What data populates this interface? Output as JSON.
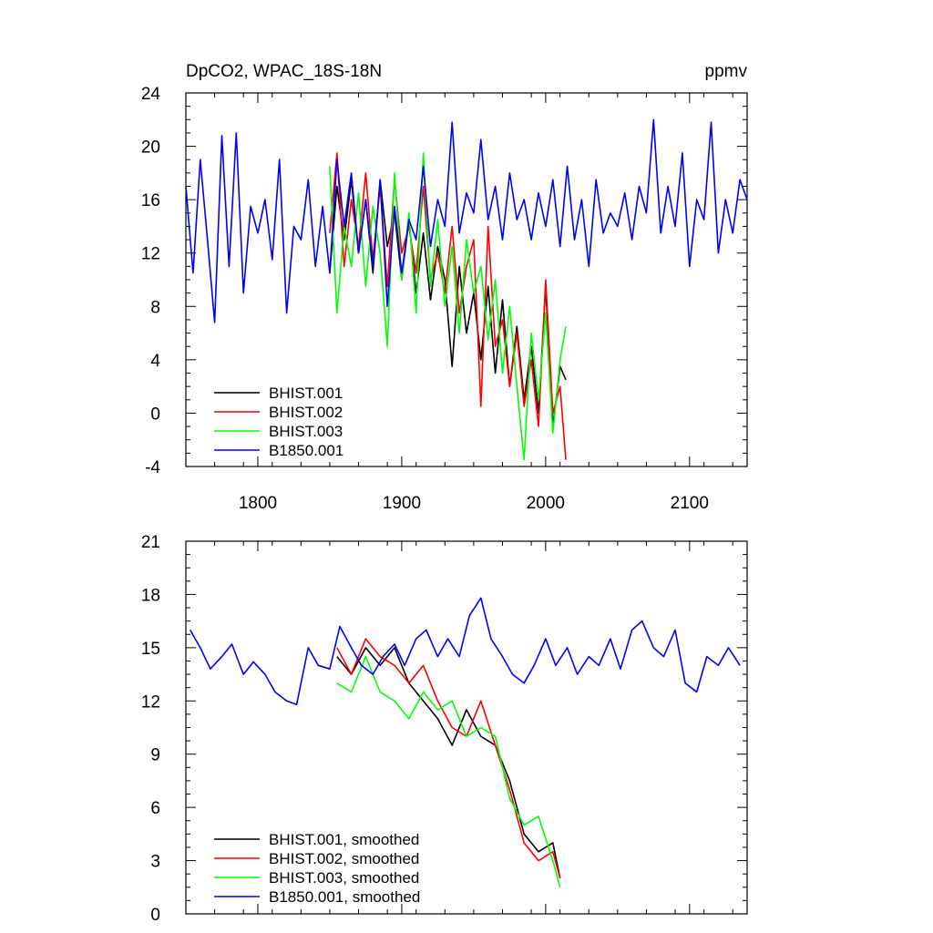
{
  "header": {
    "left_title": "DpCO2, WPAC_18S-18N",
    "right_title": "ppmv"
  },
  "colors": {
    "BHIST.001": "#000000",
    "BHIST.002": "#ff0000",
    "BHIST.003": "#00ff00",
    "B1850.001": "#0000ff"
  },
  "chart_data": [
    {
      "type": "line",
      "title": "DpCO2, WPAC_18S-18N",
      "units": "ppmv",
      "xlim": [
        1750,
        2140
      ],
      "ylim": [
        -4,
        24
      ],
      "x_ticks": [
        1800,
        1900,
        2000,
        2100
      ],
      "x_tick_labels": [
        "1800",
        "1900",
        "2000",
        "2100"
      ],
      "y_ticks": [
        -4,
        0,
        4,
        8,
        12,
        16,
        20,
        24
      ],
      "y_tick_labels": [
        "-4",
        "0",
        "4",
        "8",
        "12",
        "16",
        "20",
        "24"
      ],
      "legend_position": "bottom-left",
      "series": [
        {
          "name": "BHIST.001",
          "x": [
            1850,
            1855,
            1860,
            1865,
            1870,
            1875,
            1880,
            1885,
            1890,
            1895,
            1900,
            1905,
            1910,
            1915,
            1920,
            1925,
            1930,
            1935,
            1940,
            1945,
            1950,
            1955,
            1960,
            1965,
            1970,
            1975,
            1980,
            1985,
            1990,
            1995,
            2000,
            2005,
            2010,
            2014
          ],
          "values": [
            10.5,
            17.0,
            13.0,
            17.5,
            12.0,
            16.0,
            10.5,
            17.5,
            12.5,
            15.0,
            10.0,
            14.5,
            9.0,
            13.5,
            8.5,
            12.5,
            10.0,
            3.5,
            11.0,
            6.0,
            9.0,
            4.0,
            9.5,
            3.0,
            8.5,
            2.0,
            6.5,
            1.0,
            5.0,
            0.0,
            9.5,
            -1.0,
            3.5,
            2.5
          ]
        },
        {
          "name": "BHIST.002",
          "x": [
            1850,
            1855,
            1860,
            1865,
            1870,
            1875,
            1880,
            1885,
            1890,
            1895,
            1900,
            1905,
            1910,
            1915,
            1920,
            1925,
            1930,
            1935,
            1940,
            1945,
            1950,
            1955,
            1960,
            1965,
            1970,
            1975,
            1980,
            1985,
            1990,
            1995,
            2000,
            2005,
            2010,
            2014
          ],
          "values": [
            13.5,
            19.5,
            11.0,
            16.0,
            12.5,
            18.0,
            11.5,
            17.0,
            9.5,
            17.5,
            12.0,
            14.0,
            10.5,
            17.0,
            10.0,
            12.0,
            9.0,
            14.0,
            7.5,
            11.0,
            13.0,
            0.5,
            14.0,
            5.0,
            7.0,
            2.0,
            6.0,
            0.5,
            4.0,
            -1.0,
            10.0,
            0.0,
            2.0,
            -3.5
          ]
        },
        {
          "name": "BHIST.003",
          "x": [
            1850,
            1855,
            1860,
            1865,
            1870,
            1875,
            1880,
            1885,
            1890,
            1895,
            1900,
            1905,
            1910,
            1915,
            1920,
            1925,
            1930,
            1935,
            1940,
            1945,
            1950,
            1955,
            1960,
            1965,
            1970,
            1975,
            1980,
            1985,
            1990,
            1995,
            2000,
            2005,
            2010,
            2014
          ],
          "values": [
            18.5,
            7.5,
            14.0,
            11.0,
            16.5,
            9.5,
            15.5,
            12.0,
            5.0,
            18.0,
            10.0,
            15.0,
            7.5,
            19.5,
            9.5,
            14.5,
            8.0,
            12.5,
            6.0,
            13.0,
            9.0,
            11.0,
            5.5,
            10.0,
            3.0,
            8.0,
            2.0,
            -3.5,
            6.0,
            1.0,
            7.5,
            -1.5,
            4.0,
            6.5
          ]
        },
        {
          "name": "B1850.001",
          "x": [
            1750,
            1755,
            1760,
            1765,
            1770,
            1775,
            1780,
            1785,
            1790,
            1795,
            1800,
            1805,
            1810,
            1815,
            1820,
            1825,
            1830,
            1835,
            1840,
            1845,
            1850,
            1855,
            1860,
            1865,
            1870,
            1875,
            1880,
            1885,
            1890,
            1895,
            1900,
            1905,
            1910,
            1915,
            1920,
            1925,
            1930,
            1935,
            1940,
            1945,
            1950,
            1955,
            1960,
            1965,
            1970,
            1975,
            1980,
            1985,
            1990,
            1995,
            2000,
            2005,
            2010,
            2015,
            2020,
            2025,
            2030,
            2035,
            2040,
            2045,
            2050,
            2055,
            2060,
            2065,
            2070,
            2075,
            2080,
            2085,
            2090,
            2095,
            2100,
            2105,
            2110,
            2115,
            2120,
            2125,
            2130,
            2135,
            2140
          ],
          "values": [
            17.0,
            10.5,
            19.0,
            13.0,
            6.8,
            20.8,
            11.0,
            21.0,
            9.0,
            15.5,
            13.5,
            16.0,
            11.5,
            19.0,
            7.5,
            14.0,
            13.0,
            17.5,
            11.0,
            15.5,
            10.5,
            19.0,
            14.0,
            18.0,
            12.0,
            16.0,
            11.0,
            17.5,
            8.0,
            15.5,
            10.5,
            14.5,
            13.0,
            18.5,
            12.5,
            16.0,
            14.0,
            21.8,
            13.5,
            16.5,
            15.0,
            20.5,
            14.5,
            17.0,
            13.0,
            18.0,
            14.5,
            16.0,
            13.0,
            16.5,
            14.0,
            17.5,
            12.5,
            18.5,
            13.0,
            16.0,
            11.0,
            17.5,
            13.5,
            15.0,
            14.0,
            16.5,
            13.0,
            17.0,
            15.0,
            22.0,
            13.5,
            17.0,
            14.0,
            19.5,
            11.0,
            16.0,
            14.5,
            21.8,
            12.0,
            16.0,
            13.5,
            17.5,
            16.0
          ]
        }
      ]
    },
    {
      "type": "line",
      "xlim": [
        1750,
        2140
      ],
      "ylim": [
        0,
        21
      ],
      "x_ticks": [
        1800,
        1900,
        2000,
        2100
      ],
      "y_ticks": [
        0,
        3,
        6,
        9,
        12,
        15,
        18,
        21
      ],
      "y_tick_labels": [
        "0",
        "3",
        "6",
        "9",
        "12",
        "15",
        "18",
        "21"
      ],
      "legend_position": "bottom-left",
      "series": [
        {
          "name": "BHIST.001, smoothed",
          "x": [
            1855,
            1865,
            1875,
            1885,
            1895,
            1905,
            1915,
            1925,
            1935,
            1945,
            1955,
            1965,
            1975,
            1985,
            1995,
            2005,
            2010
          ],
          "values": [
            14.5,
            13.5,
            15.0,
            14.0,
            15.0,
            13.0,
            12.0,
            11.0,
            9.5,
            11.5,
            10.0,
            9.5,
            7.5,
            4.5,
            3.5,
            4.0,
            2.0
          ]
        },
        {
          "name": "BHIST.002, smoothed",
          "x": [
            1855,
            1865,
            1875,
            1885,
            1895,
            1905,
            1915,
            1925,
            1935,
            1945,
            1955,
            1965,
            1975,
            1985,
            1995,
            2005,
            2010
          ],
          "values": [
            15.0,
            13.5,
            15.5,
            14.5,
            14.0,
            13.0,
            14.0,
            12.0,
            10.5,
            10.0,
            12.0,
            9.5,
            7.0,
            4.0,
            3.0,
            3.5,
            2.0
          ]
        },
        {
          "name": "BHIST.003, smoothed",
          "x": [
            1855,
            1865,
            1875,
            1885,
            1895,
            1905,
            1915,
            1925,
            1935,
            1945,
            1955,
            1965,
            1975,
            1985,
            1995,
            2005,
            2010
          ],
          "values": [
            13.0,
            12.5,
            14.5,
            12.5,
            12.0,
            11.0,
            12.5,
            11.5,
            12.0,
            10.0,
            10.5,
            10.0,
            6.5,
            5.0,
            5.5,
            3.0,
            1.5
          ]
        },
        {
          "name": "B1850.001, smoothed",
          "x": [
            1753,
            1760,
            1767,
            1775,
            1782,
            1790,
            1797,
            1805,
            1812,
            1820,
            1827,
            1835,
            1842,
            1850,
            1857,
            1865,
            1872,
            1880,
            1887,
            1895,
            1902,
            1910,
            1917,
            1925,
            1932,
            1940,
            1947,
            1955,
            1962,
            1970,
            1977,
            1985,
            1992,
            2000,
            2007,
            2015,
            2022,
            2030,
            2037,
            2045,
            2052,
            2060,
            2067,
            2075,
            2082,
            2090,
            2097,
            2105,
            2112,
            2120,
            2127,
            2135
          ],
          "values": [
            16.0,
            15.0,
            13.8,
            14.5,
            15.2,
            13.5,
            14.2,
            13.5,
            12.5,
            12.0,
            11.8,
            15.0,
            14.0,
            13.8,
            16.2,
            15.0,
            14.0,
            13.5,
            14.5,
            15.2,
            14.0,
            15.5,
            16.0,
            14.5,
            15.5,
            14.5,
            16.8,
            17.8,
            15.5,
            14.5,
            13.5,
            13.0,
            14.0,
            15.5,
            14.0,
            15.0,
            13.5,
            14.5,
            14.0,
            15.5,
            13.8,
            16.0,
            16.5,
            15.0,
            14.5,
            16.0,
            13.0,
            12.5,
            14.5,
            14.0,
            15.0,
            14.0
          ]
        }
      ]
    }
  ]
}
